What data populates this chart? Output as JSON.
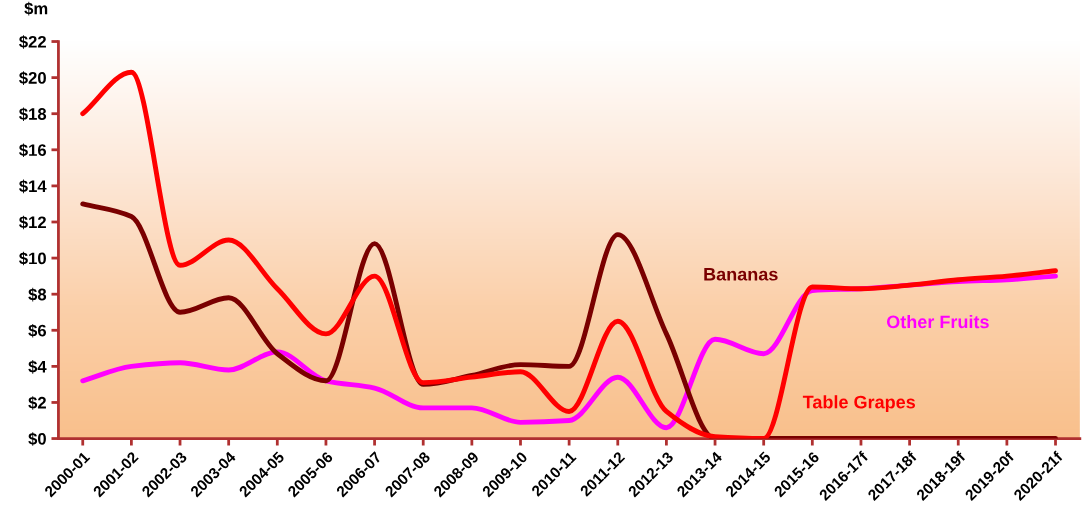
{
  "chart_data": {
    "type": "line",
    "ylabel": "$m",
    "categories": [
      "2000-01",
      "2001-02",
      "2002-03",
      "2003-04",
      "2004-05",
      "2005-06",
      "2006-07",
      "2007-08",
      "2008-09",
      "2009-10",
      "2010-11",
      "2011-12",
      "2012-13",
      "2013-14",
      "2014-15",
      "2015-16",
      "2016-17f",
      "2017-18f",
      "2018-19f",
      "2019-20f",
      "2020-21f"
    ],
    "series": [
      {
        "name": "Table Grapes",
        "color": "#ff0000",
        "values": [
          18,
          20.3,
          9.6,
          11.0,
          8.3,
          5.8,
          9.0,
          3.1,
          3.4,
          3.7,
          1.5,
          6.5,
          1.5,
          0.1,
          0,
          8.4,
          8.3,
          8.5,
          8.8,
          9.0,
          9.3
        ]
      },
      {
        "name": "Bananas",
        "color": "#7a0000",
        "values": [
          13,
          12.3,
          7.0,
          7.8,
          4.7,
          3.2,
          10.8,
          3.0,
          3.5,
          4.1,
          4.0,
          11.3,
          5.8,
          0,
          0,
          0,
          0,
          0,
          0,
          0,
          0
        ]
      },
      {
        "name": "Other Fruits",
        "color": "#ff00ff",
        "values": [
          3.2,
          4.0,
          4.2,
          3.8,
          4.8,
          3.2,
          2.8,
          1.7,
          1.7,
          0.9,
          1.0,
          3.4,
          0.6,
          5.5,
          4.7,
          8.2,
          8.3,
          8.5,
          8.7,
          8.8,
          9.0
        ]
      }
    ],
    "ylim": [
      0,
      22
    ],
    "yticks": [
      {
        "value": 0,
        "label": "$0"
      },
      {
        "value": 2,
        "label": "$2"
      },
      {
        "value": 4,
        "label": "$4"
      },
      {
        "value": 6,
        "label": "$6"
      },
      {
        "value": 8,
        "label": "$8"
      },
      {
        "value": 10,
        "label": "$10"
      },
      {
        "value": 12,
        "label": "$12"
      },
      {
        "value": 14,
        "label": "$14"
      },
      {
        "value": 16,
        "label": "$16"
      },
      {
        "value": 18,
        "label": "$18"
      },
      {
        "value": 20,
        "label": "$20"
      },
      {
        "value": 22,
        "label": "$22"
      }
    ],
    "grid": false,
    "legend": false,
    "marker": "none",
    "line_style": "solid"
  }
}
